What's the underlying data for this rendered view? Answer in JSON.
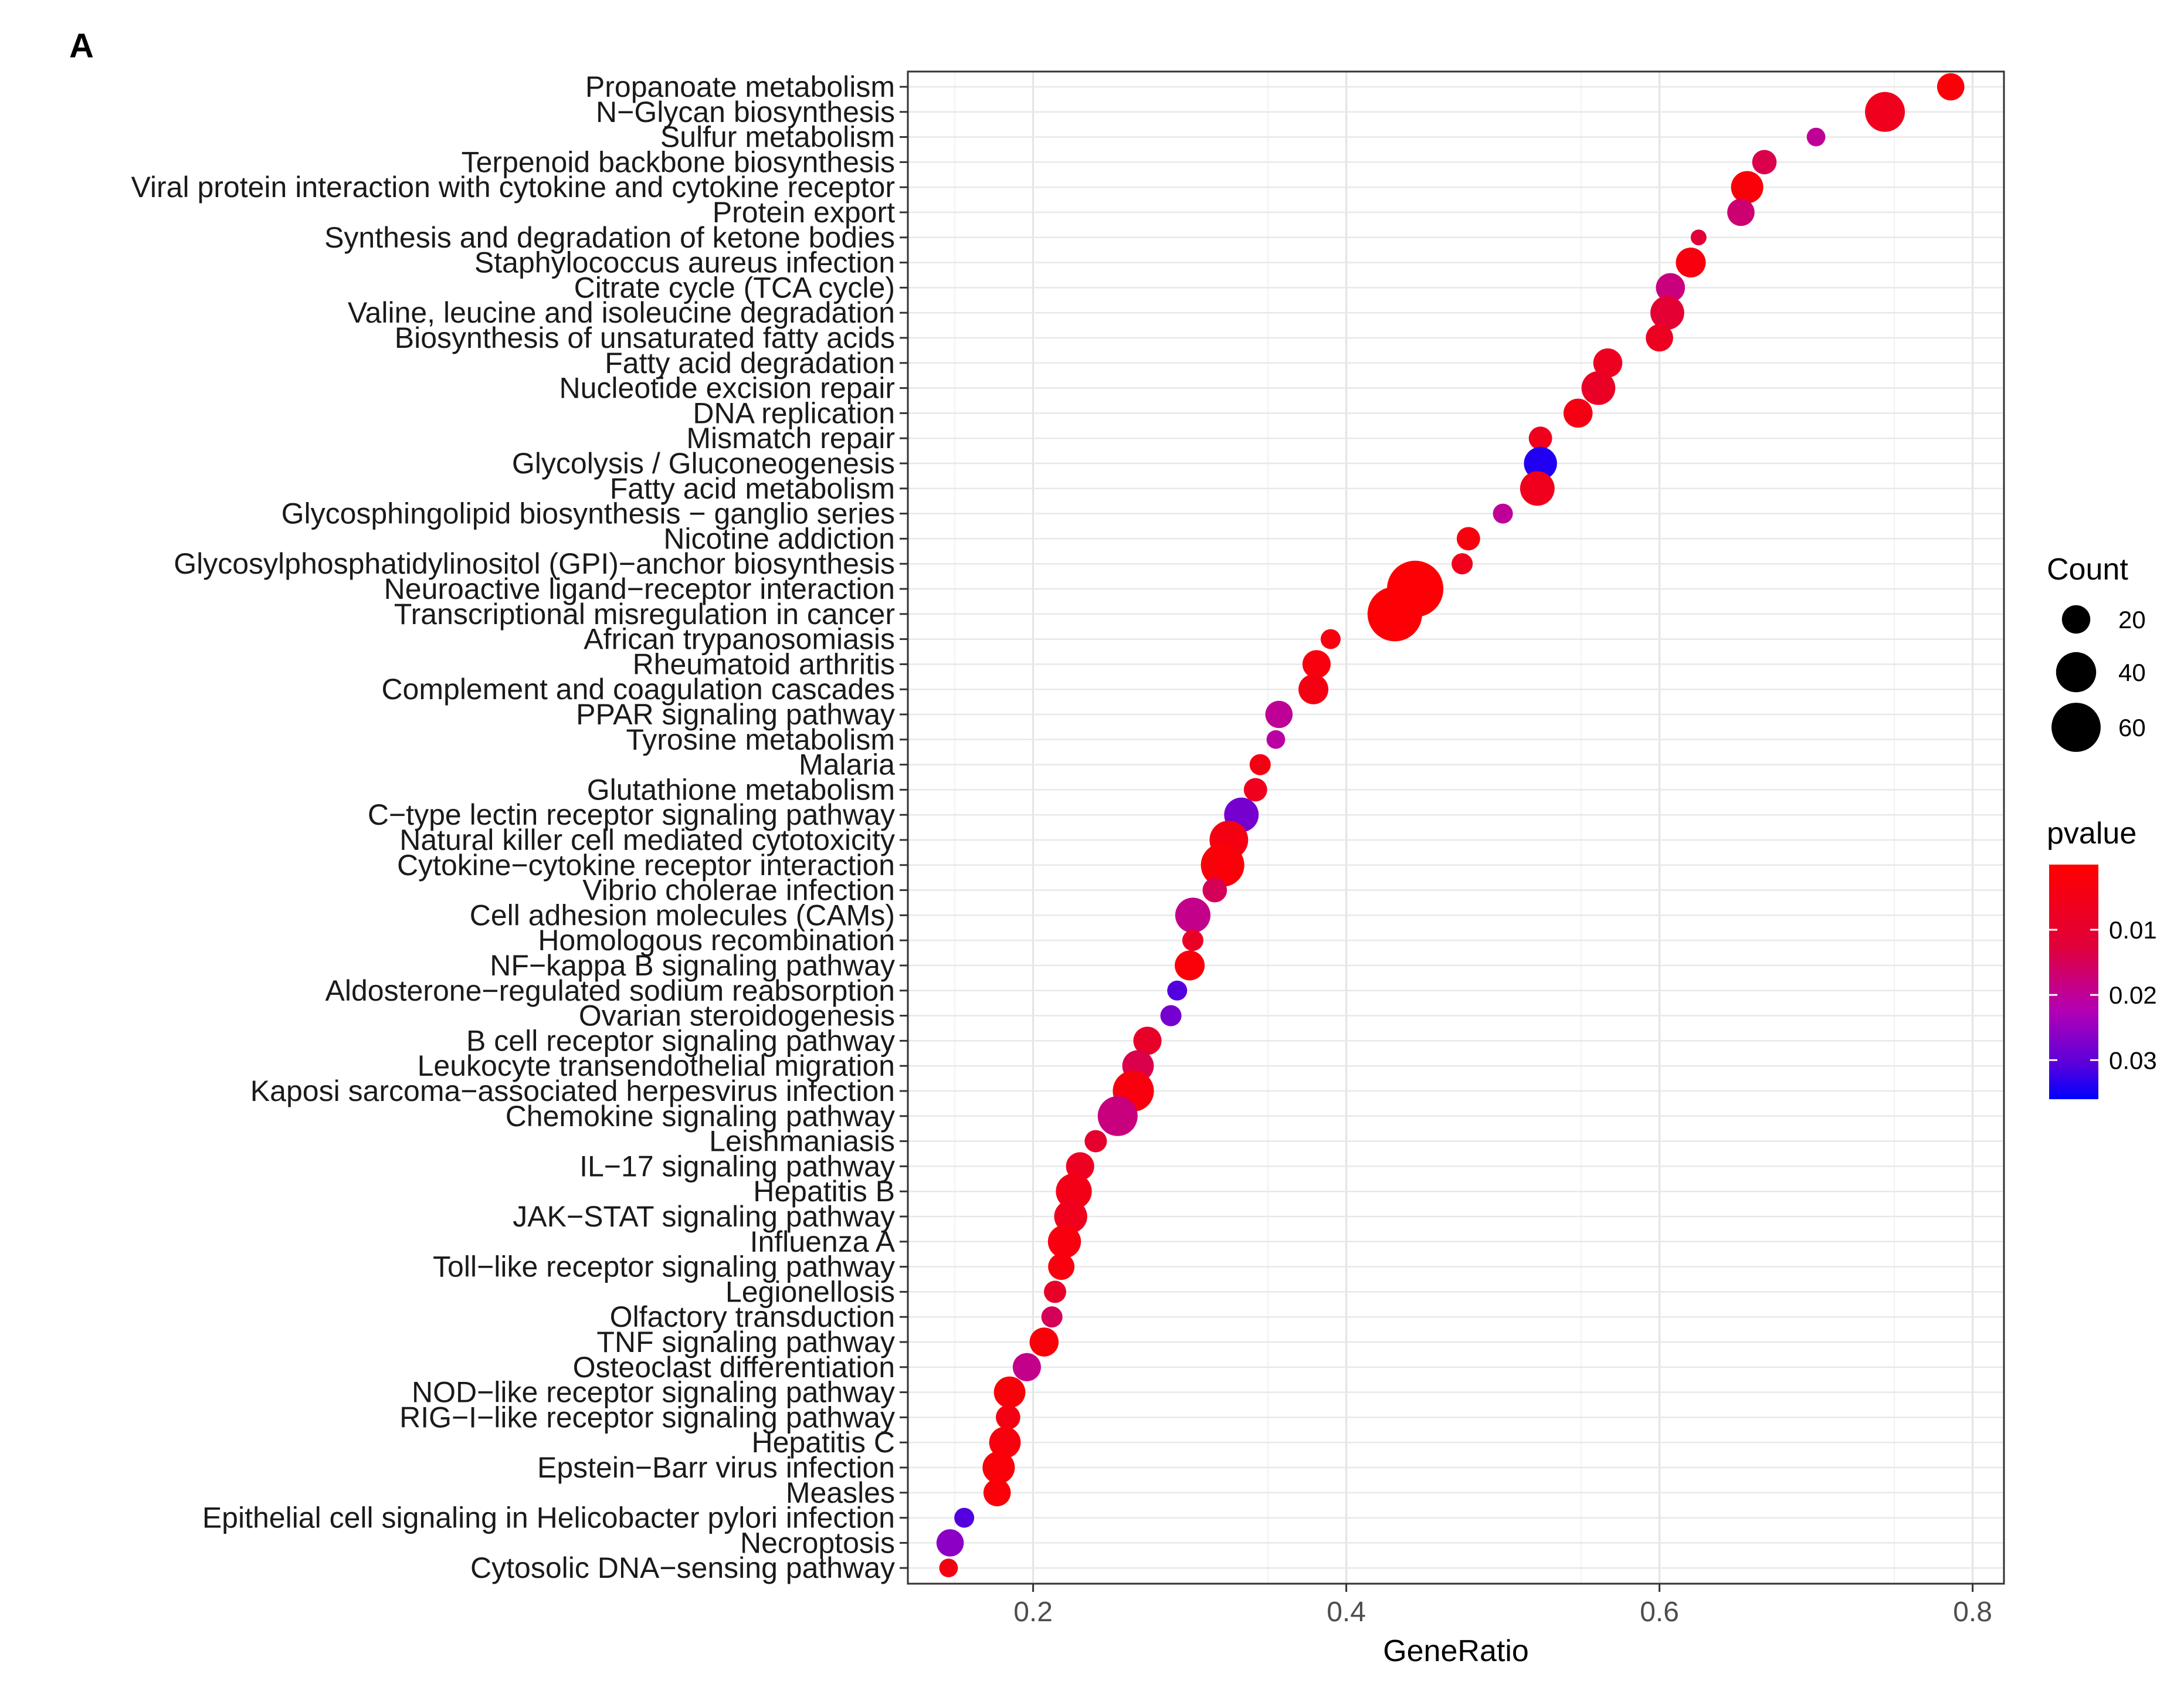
{
  "panel_label": "A",
  "chart_data": {
    "type": "scatter",
    "subtype": "dot-plot",
    "title": "",
    "xlabel": "GeneRatio",
    "ylabel": "",
    "xlim": [
      0.12,
      0.82
    ],
    "x_ticks": [
      0.2,
      0.4,
      0.6,
      0.8
    ],
    "x_tick_labels": [
      "0.2",
      "0.4",
      "0.6",
      "0.8"
    ],
    "grid": true,
    "legend_position": "right",
    "size_legend": {
      "title": "Count",
      "values": [
        20,
        40,
        60
      ],
      "labels": [
        "20",
        "40",
        "60"
      ]
    },
    "color_legend": {
      "title": "pvalue",
      "low_color": "#ff0000",
      "high_color": "#0000ff",
      "range": [
        0.0,
        0.036
      ],
      "ticks": [
        0.01,
        0.02,
        0.03
      ],
      "tick_labels": [
        "0.01",
        "0.02",
        "0.03"
      ]
    },
    "categories": [
      "Propanoate metabolism",
      "N−Glycan biosynthesis",
      "Sulfur metabolism",
      "Terpenoid backbone biosynthesis",
      "Viral protein interaction with cytokine and cytokine receptor",
      "Protein export",
      "Synthesis and degradation of ketone bodies",
      "Staphylococcus aureus infection",
      "Citrate cycle (TCA cycle)",
      "Valine, leucine and isoleucine degradation",
      "Biosynthesis of unsaturated fatty acids",
      "Fatty acid degradation",
      "Nucleotide excision repair",
      "DNA replication",
      "Mismatch repair",
      "Glycolysis / Gluconeogenesis",
      "Fatty acid metabolism",
      "Glycosphingolipid biosynthesis − ganglio series",
      "Nicotine addiction",
      "Glycosylphosphatidylinositol (GPI)−anchor biosynthesis",
      "Neuroactive ligand−receptor interaction",
      "Transcriptional misregulation in cancer",
      "African trypanosomiasis",
      "Rheumatoid arthritis",
      "Complement and coagulation cascades",
      "PPAR signaling pathway",
      "Tyrosine metabolism",
      "Malaria",
      "Glutathione metabolism",
      "C−type lectin receptor signaling pathway",
      "Natural killer cell mediated cytotoxicity",
      "Cytokine−cytokine receptor interaction",
      "Vibrio cholerae infection",
      "Cell adhesion molecules (CAMs)",
      "Homologous recombination",
      "NF−kappa B signaling pathway",
      "Aldosterone−regulated sodium reabsorption",
      "Ovarian steroidogenesis",
      "B cell receptor signaling pathway",
      "Leukocyte transendothelial migration",
      "Kaposi sarcoma−associated herpesvirus infection",
      "Chemokine signaling pathway",
      "Leishmaniasis",
      "IL−17 signaling pathway",
      "Hepatitis B",
      "JAK−STAT signaling pathway",
      "Influenza A",
      "Toll−like receptor signaling pathway",
      "Legionellosis",
      "Olfactory transduction",
      "TNF signaling pathway",
      "Osteoclast differentiation",
      "NOD−like receptor signaling pathway",
      "RIG−I−like receptor signaling pathway",
      "Hepatitis C",
      "Epstein−Barr virus infection",
      "Measles",
      "Epithelial cell signaling in Helicobacter pylori infection",
      "Necroptosis",
      "Cytosolic DNA−sensing pathway"
    ],
    "points": [
      {
        "x": 0.786,
        "count": 15,
        "pvalue": 0.002
      },
      {
        "x": 0.744,
        "count": 32,
        "pvalue": 0.006
      },
      {
        "x": 0.7,
        "count": 7,
        "pvalue": 0.02
      },
      {
        "x": 0.667,
        "count": 12,
        "pvalue": 0.014
      },
      {
        "x": 0.656,
        "count": 21,
        "pvalue": 0.002
      },
      {
        "x": 0.652,
        "count": 15,
        "pvalue": 0.017
      },
      {
        "x": 0.625,
        "count": 5,
        "pvalue": 0.012
      },
      {
        "x": 0.62,
        "count": 18,
        "pvalue": 0.003
      },
      {
        "x": 0.607,
        "count": 17,
        "pvalue": 0.018
      },
      {
        "x": 0.605,
        "count": 23,
        "pvalue": 0.011
      },
      {
        "x": 0.6,
        "count": 15,
        "pvalue": 0.007
      },
      {
        "x": 0.567,
        "count": 17,
        "pvalue": 0.007
      },
      {
        "x": 0.561,
        "count": 23,
        "pvalue": 0.008
      },
      {
        "x": 0.548,
        "count": 17,
        "pvalue": 0.004
      },
      {
        "x": 0.524,
        "count": 11,
        "pvalue": 0.006
      },
      {
        "x": 0.524,
        "count": 22,
        "pvalue": 0.034
      },
      {
        "x": 0.522,
        "count": 24,
        "pvalue": 0.006
      },
      {
        "x": 0.5,
        "count": 8,
        "pvalue": 0.02
      },
      {
        "x": 0.478,
        "count": 11,
        "pvalue": 0.003
      },
      {
        "x": 0.474,
        "count": 9,
        "pvalue": 0.006
      },
      {
        "x": 0.444,
        "count": 64,
        "pvalue": 0.001
      },
      {
        "x": 0.431,
        "count": 60,
        "pvalue": 0.001
      },
      {
        "x": 0.39,
        "count": 8,
        "pvalue": 0.003
      },
      {
        "x": 0.381,
        "count": 16,
        "pvalue": 0.003
      },
      {
        "x": 0.379,
        "count": 18,
        "pvalue": 0.004
      },
      {
        "x": 0.357,
        "count": 15,
        "pvalue": 0.02
      },
      {
        "x": 0.355,
        "count": 7,
        "pvalue": 0.021
      },
      {
        "x": 0.345,
        "count": 9,
        "pvalue": 0.004
      },
      {
        "x": 0.342,
        "count": 11,
        "pvalue": 0.006
      },
      {
        "x": 0.333,
        "count": 24,
        "pvalue": 0.028
      },
      {
        "x": 0.325,
        "count": 30,
        "pvalue": 0.004
      },
      {
        "x": 0.321,
        "count": 38,
        "pvalue": 0.002
      },
      {
        "x": 0.316,
        "count": 12,
        "pvalue": 0.015
      },
      {
        "x": 0.302,
        "count": 25,
        "pvalue": 0.019
      },
      {
        "x": 0.302,
        "count": 9,
        "pvalue": 0.008
      },
      {
        "x": 0.3,
        "count": 18,
        "pvalue": 0.002
      },
      {
        "x": 0.292,
        "count": 8,
        "pvalue": 0.031
      },
      {
        "x": 0.288,
        "count": 9,
        "pvalue": 0.028
      },
      {
        "x": 0.273,
        "count": 16,
        "pvalue": 0.009
      },
      {
        "x": 0.267,
        "count": 20,
        "pvalue": 0.014
      },
      {
        "x": 0.264,
        "count": 34,
        "pvalue": 0.003
      },
      {
        "x": 0.254,
        "count": 32,
        "pvalue": 0.018
      },
      {
        "x": 0.24,
        "count": 10,
        "pvalue": 0.01
      },
      {
        "x": 0.23,
        "count": 16,
        "pvalue": 0.007
      },
      {
        "x": 0.226,
        "count": 26,
        "pvalue": 0.005
      },
      {
        "x": 0.224,
        "count": 22,
        "pvalue": 0.006
      },
      {
        "x": 0.22,
        "count": 22,
        "pvalue": 0.003
      },
      {
        "x": 0.218,
        "count": 14,
        "pvalue": 0.003
      },
      {
        "x": 0.214,
        "count": 10,
        "pvalue": 0.009
      },
      {
        "x": 0.212,
        "count": 9,
        "pvalue": 0.015
      },
      {
        "x": 0.207,
        "count": 17,
        "pvalue": 0.002
      },
      {
        "x": 0.196,
        "count": 16,
        "pvalue": 0.019
      },
      {
        "x": 0.185,
        "count": 20,
        "pvalue": 0.002
      },
      {
        "x": 0.184,
        "count": 12,
        "pvalue": 0.004
      },
      {
        "x": 0.182,
        "count": 20,
        "pvalue": 0.003
      },
      {
        "x": 0.178,
        "count": 21,
        "pvalue": 0.002
      },
      {
        "x": 0.177,
        "count": 15,
        "pvalue": 0.002
      },
      {
        "x": 0.156,
        "count": 8,
        "pvalue": 0.031
      },
      {
        "x": 0.147,
        "count": 15,
        "pvalue": 0.026
      },
      {
        "x": 0.146,
        "count": 7,
        "pvalue": 0.004
      }
    ]
  }
}
